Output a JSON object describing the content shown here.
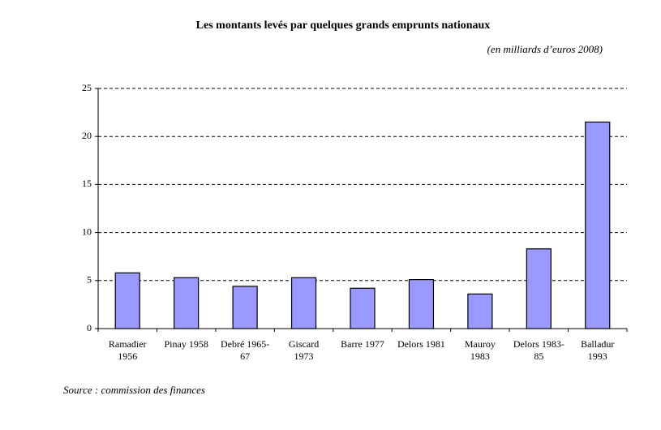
{
  "chart_data": {
    "type": "bar",
    "title": "Les montants levés par quelques grands emprunts nationaux",
    "subtitle": "(en milliards d’euros 2008)",
    "source": "Source : commission des finances",
    "categories": [
      "Ramadier\n1956",
      "Pinay 1958",
      "Debré 1965-\n67",
      "Giscard\n1973",
      "Barre 1977",
      "Delors 1981",
      "Mauroy\n1983",
      "Delors 1983-\n85",
      "Balladur\n1993"
    ],
    "values": [
      5.8,
      5.3,
      4.4,
      5.3,
      4.2,
      5.1,
      3.6,
      8.3,
      21.5
    ],
    "color": "#9999ff",
    "ylim": [
      0,
      25
    ],
    "yticks": [
      0,
      5,
      10,
      15,
      20,
      25
    ],
    "grid": true
  }
}
